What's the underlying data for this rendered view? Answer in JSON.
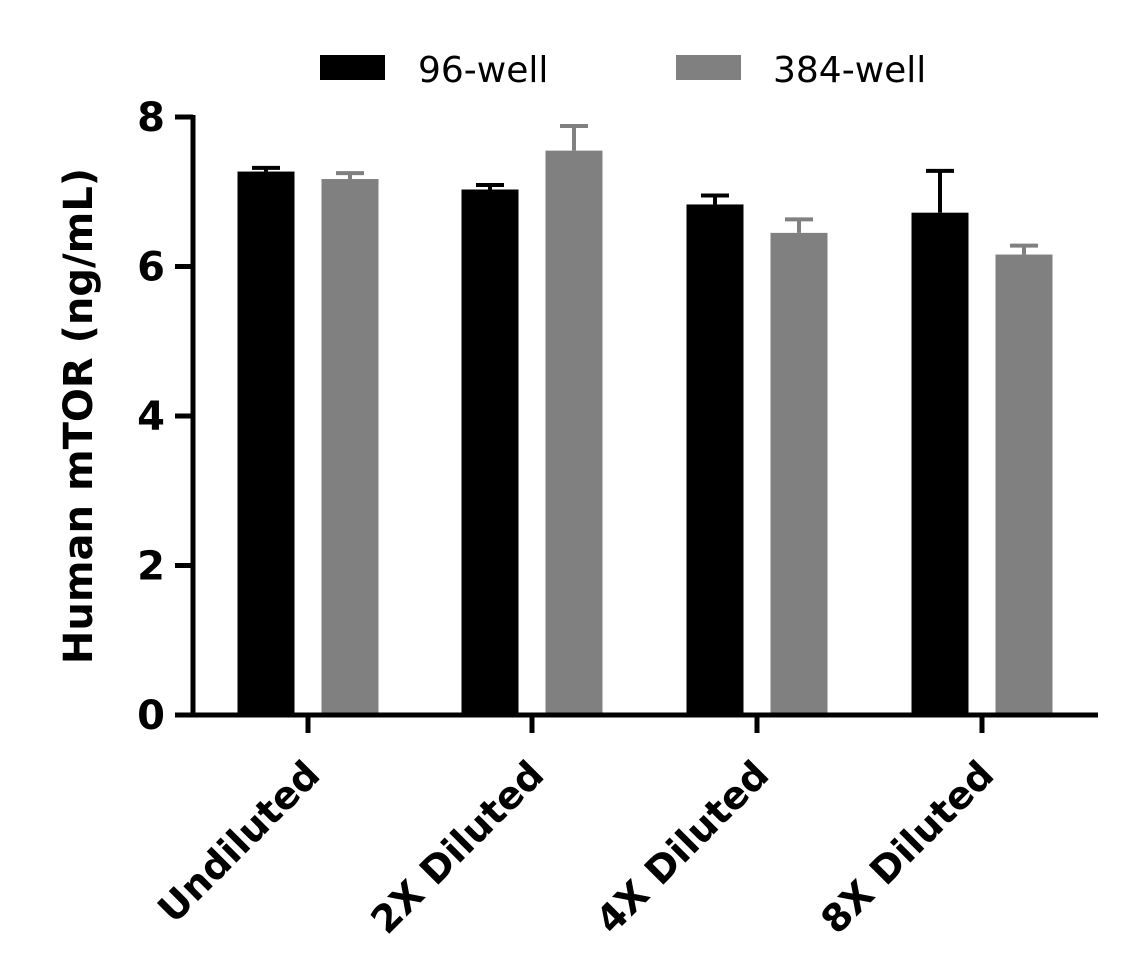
{
  "chart_data": {
    "type": "bar",
    "title": "",
    "xlabel": "",
    "ylabel": "Human mTOR (ng/mL)",
    "categories": [
      "Undiluted",
      "2X Diluted",
      "4X Diluted",
      "8X Diluted"
    ],
    "series": [
      {
        "name": "96-well",
        "color": "#000000",
        "values": [
          7.27,
          7.03,
          6.83,
          6.72
        ],
        "errors": [
          0.05,
          0.06,
          0.12,
          0.56
        ]
      },
      {
        "name": "384-well",
        "color": "#808080",
        "values": [
          7.17,
          7.55,
          6.45,
          6.16
        ],
        "errors": [
          0.08,
          0.33,
          0.18,
          0.12
        ]
      }
    ],
    "ylim": [
      0,
      8
    ],
    "yticks": [
      "0",
      "2",
      "4",
      "6",
      "8"
    ],
    "grid": false,
    "legend": "top-center"
  }
}
